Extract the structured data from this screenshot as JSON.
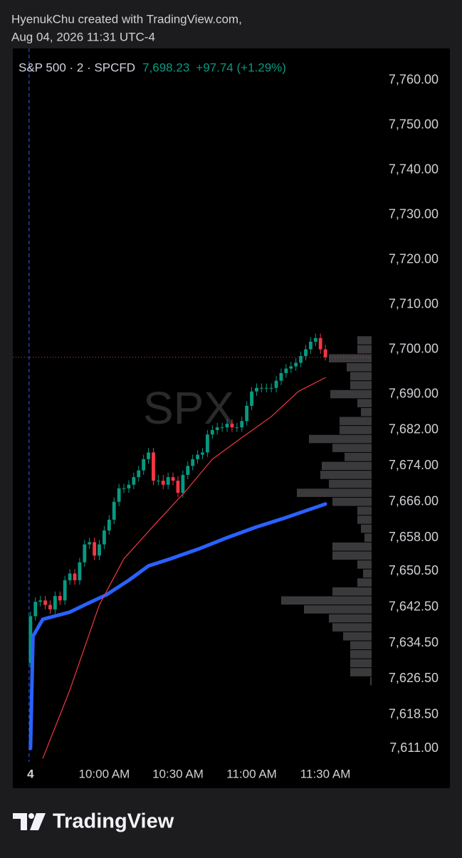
{
  "header": {
    "line1": "HyenukChu created with TradingView.com,",
    "line2": "Aug 04, 2026 11:31 UTC-4"
  },
  "footer": {
    "brand": "TradingView"
  },
  "chart_data": {
    "type": "candlestick",
    "symbol": "S&P 500 · 2 · SPCFD",
    "price_label": "7,698.23",
    "change_label": "+97.74 (+1.29%)",
    "watermark": "SPX",
    "up_color": "#089981",
    "down_color": "#f23645",
    "x": [
      0,
      2,
      4,
      6,
      8,
      10,
      12,
      14,
      16,
      18,
      20,
      22,
      24,
      26,
      28,
      30,
      32,
      34,
      36,
      38,
      40,
      42,
      44,
      46,
      48,
      50,
      52,
      54,
      56,
      58,
      60,
      62,
      64,
      66,
      68,
      70,
      72,
      74,
      76,
      78,
      80,
      82,
      84,
      86,
      88,
      90,
      92,
      94,
      96,
      98,
      100,
      102,
      104,
      106,
      108,
      110,
      112,
      114,
      116,
      118,
      120
    ],
    "open": [
      7630,
      7640.5,
      7643.7,
      7644,
      7643,
      7642,
      7645,
      7644,
      7648.5,
      7650,
      7648.5,
      7652.5,
      7656.5,
      7657,
      7654,
      7656.5,
      7659.6,
      7662,
      7666,
      7669,
      7669,
      7669.8,
      7671.5,
      7673,
      7675.5,
      7677,
      7670.7,
      7670.7,
      7669.8,
      7671.5,
      7670.7,
      7668,
      7672,
      7674,
      7675.5,
      7676.5,
      7677,
      7681,
      7682,
      7682.6,
      7682.6,
      7683.4,
      7682.6,
      7682.6,
      7684,
      7687.4,
      7690.6,
      7691.4,
      7691.4,
      7691.4,
      7691.4,
      7693,
      7694.7,
      7695.7,
      7696.2,
      7697,
      7698.5,
      7700,
      7701.7,
      7702.5,
      7700
    ],
    "high": [
      7641.5,
      7644.7,
      7645,
      7645,
      7644,
      7646,
      7646,
      7649.5,
      7651,
      7651,
      7653.5,
      7657.5,
      7658,
      7658,
      7657.5,
      7660.6,
      7663,
      7667,
      7670,
      7670,
      7670.8,
      7672.5,
      7674,
      7676.5,
      7678,
      7678,
      7672,
      7672,
      7672.5,
      7672.5,
      7671.7,
      7673,
      7675,
      7676.5,
      7677.5,
      7678,
      7682,
      7683,
      7683.6,
      7683.6,
      7684.4,
      7684.4,
      7683.6,
      7685,
      7688.4,
      7691.6,
      7692.4,
      7692.4,
      7692.4,
      7692.4,
      7694,
      7695.7,
      7696.7,
      7697.2,
      7698,
      7699.5,
      7701,
      7702.7,
      7703.5,
      7703.5,
      7701
    ],
    "low": [
      7629,
      7639.5,
      7642.7,
      7642,
      7641,
      7641,
      7643,
      7643,
      7647.5,
      7647.5,
      7647.5,
      7651.5,
      7655.5,
      7653,
      7653,
      7655.5,
      7658.6,
      7661,
      7665,
      7668,
      7668,
      7668.8,
      7670.5,
      7672,
      7674.5,
      7669.7,
      7669.7,
      7668.8,
      7668.8,
      7669.7,
      7667,
      7667,
      7671,
      7673,
      7674.5,
      7675.5,
      7676,
      7680,
      7681,
      7681.6,
      7681.6,
      7681.6,
      7681.6,
      7681.6,
      7683,
      7686.4,
      7689.6,
      7690.4,
      7690.4,
      7690.4,
      7690.4,
      7692,
      7693.7,
      7694.7,
      7695.2,
      7696,
      7697.5,
      7699,
      7700.7,
      7699,
      7697.5
    ],
    "close": [
      7640.5,
      7643.7,
      7644,
      7643,
      7642,
      7645,
      7644,
      7648.5,
      7650,
      7648.5,
      7652.5,
      7656.5,
      7657,
      7654,
      7656.5,
      7659.6,
      7662,
      7666,
      7669,
      7669,
      7669.8,
      7671.5,
      7673,
      7675.5,
      7677,
      7670.7,
      7670.7,
      7669.8,
      7671.5,
      7670.7,
      7668,
      7672,
      7674,
      7675.5,
      7676.5,
      7677,
      7681,
      7682,
      7682.6,
      7682.6,
      7683.4,
      7682.6,
      7682.6,
      7684,
      7687.4,
      7690.6,
      7691.4,
      7691.4,
      7691.4,
      7691.4,
      7693,
      7694.7,
      7695.7,
      7696.2,
      7697,
      7698.5,
      7700,
      7701.7,
      7702.5,
      7700,
      7698.23
    ],
    "overlays": [
      {
        "color": "#2962ff",
        "x": [
          0,
          1,
          5,
          16,
          22,
          31,
          40,
          48,
          57,
          69,
          80,
          92,
          103,
          112,
          120
        ],
        "values": [
          7611,
          7636,
          7639.8,
          7641.4,
          7643,
          7645.3,
          7648.5,
          7651.7,
          7653.3,
          7655.6,
          7658,
          7660.4,
          7662.3,
          7664,
          7665.5
        ]
      },
      {
        "color": "#f23645",
        "x": [
          5,
          16,
          28,
          38,
          51,
          63,
          74,
          86,
          98,
          109,
          120
        ],
        "values": [
          7608.8,
          7624,
          7643,
          7653.3,
          7661.2,
          7668.3,
          7675.5,
          7680.3,
          7685,
          7690.6,
          7693.7
        ]
      }
    ],
    "volume_profile": {
      "color": "#3a3a3c",
      "prices": [
        7702,
        7700,
        7698,
        7696,
        7694,
        7692,
        7690,
        7688,
        7686,
        7684,
        7682,
        7680,
        7678,
        7676,
        7674,
        7672,
        7670,
        7668,
        7666,
        7664,
        7662,
        7660,
        7658,
        7656,
        7654,
        7652,
        7650,
        7648,
        7646,
        7644,
        7642,
        7640,
        7638,
        7636,
        7634,
        7632,
        7630,
        7628,
        7626
      ],
      "values": [
        20,
        20,
        60,
        35,
        30,
        30,
        58,
        20,
        15,
        45,
        45,
        88,
        55,
        38,
        70,
        72,
        60,
        105,
        55,
        20,
        20,
        15,
        10,
        55,
        55,
        20,
        12,
        20,
        55,
        127,
        95,
        60,
        55,
        40,
        30,
        30,
        30,
        30,
        2
      ]
    },
    "xlim": [
      -7.2,
      138.8
    ],
    "xticks": [
      {
        "value": 0,
        "label": "4"
      },
      {
        "value": 30,
        "label": "10:00 AM"
      },
      {
        "value": 60,
        "label": "10:30 AM"
      },
      {
        "value": 90,
        "label": "11:00 AM"
      },
      {
        "value": 120,
        "label": "11:30 AM"
      }
    ],
    "ylim": [
      7608,
      7767.1
    ],
    "yticks": [
      {
        "value": 7760,
        "label": "7,760.00"
      },
      {
        "value": 7750,
        "label": "7,750.00"
      },
      {
        "value": 7740,
        "label": "7,740.00"
      },
      {
        "value": 7730,
        "label": "7,730.00"
      },
      {
        "value": 7720,
        "label": "7,720.00"
      },
      {
        "value": 7710,
        "label": "7,710.00"
      },
      {
        "value": 7700,
        "label": "7,700.00"
      },
      {
        "value": 7690,
        "label": "7,690.00"
      },
      {
        "value": 7682,
        "label": "7,682.00"
      },
      {
        "value": 7674,
        "label": "7,674.00"
      },
      {
        "value": 7666,
        "label": "7,666.00"
      },
      {
        "value": 7658,
        "label": "7,658.00"
      },
      {
        "value": 7650.5,
        "label": "7,650.50"
      },
      {
        "value": 7642.5,
        "label": "7,642.50"
      },
      {
        "value": 7634.5,
        "label": "7,634.50"
      },
      {
        "value": 7626.5,
        "label": "7,626.50"
      },
      {
        "value": 7618.5,
        "label": "7,618.50"
      },
      {
        "value": 7611,
        "label": "7,611.00"
      }
    ]
  }
}
